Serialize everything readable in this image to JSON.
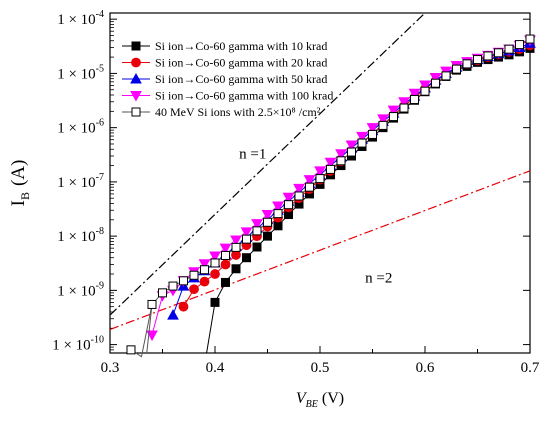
{
  "chart_data": {
    "type": "scatter",
    "title": "",
    "xlabel": "V",
    "xlabel_sub": "BE",
    "xlabel_unit": "(V)",
    "ylabel": "I",
    "ylabel_sub": "B",
    "ylabel_unit": "(A)",
    "xlim": [
      0.3,
      0.7
    ],
    "ylim": [
      7e-11,
      0.00013
    ],
    "yscale": "log",
    "grid": false,
    "legend_position": "top-left",
    "x_ticks": [
      {
        "value": 0.3,
        "label": "0.3"
      },
      {
        "value": 0.4,
        "label": "0.4"
      },
      {
        "value": 0.5,
        "label": "0.5"
      },
      {
        "value": 0.6,
        "label": "0.6"
      },
      {
        "value": 0.7,
        "label": "0.7"
      }
    ],
    "y_ticks": [
      {
        "value": 1e-10,
        "mantissa": "1 × 10",
        "exponent": "-10"
      },
      {
        "value": 1e-09,
        "mantissa": "1 × 10",
        "exponent": "-9"
      },
      {
        "value": 1e-08,
        "mantissa": "1 × 10",
        "exponent": "-8"
      },
      {
        "value": 1e-07,
        "mantissa": "1 × 10",
        "exponent": "-7"
      },
      {
        "value": 1e-06,
        "mantissa": "1 × 10",
        "exponent": "-6"
      },
      {
        "value": 1e-05,
        "mantissa": "1 × 10",
        "exponent": "-5"
      },
      {
        "value": 0.0001,
        "mantissa": "1 × 10",
        "exponent": "-4"
      }
    ],
    "series": [
      {
        "name": "Si ion→Co-60 gamma with 10 krad",
        "marker": "square",
        "fill": "#000000",
        "stroke": "#000000",
        "x": [
          0.4,
          0.41,
          0.42,
          0.43,
          0.44,
          0.45,
          0.46,
          0.47,
          0.48,
          0.49,
          0.5,
          0.51,
          0.52,
          0.53,
          0.54,
          0.55,
          0.56,
          0.57,
          0.58,
          0.59,
          0.6,
          0.61,
          0.62,
          0.63,
          0.64,
          0.65,
          0.66,
          0.67,
          0.68,
          0.69,
          0.7
        ],
        "y": [
          6e-10,
          1.4e-09,
          2.5e-09,
          4e-09,
          6.3e-09,
          1e-08,
          1.55e-08,
          2.5e-08,
          3.9e-08,
          6e-08,
          9e-08,
          1.35e-07,
          2e-07,
          3e-07,
          4.5e-07,
          6.7e-07,
          1e-06,
          1.5e-06,
          2.2e-06,
          3.2e-06,
          4.6e-06,
          6.4e-06,
          8.8e-06,
          1.15e-05,
          1.35e-05,
          1.6e-05,
          1.8e-05,
          2e-05,
          2.2e-05,
          2.5e-05,
          2.9e-05
        ]
      },
      {
        "name": "Si ion→Co-60 gamma with 20 krad",
        "marker": "circle",
        "fill": "#e8000b",
        "stroke": "#e8000b",
        "x": [
          0.37,
          0.38,
          0.39,
          0.4,
          0.41,
          0.42,
          0.43,
          0.44,
          0.45,
          0.46,
          0.47,
          0.48,
          0.49,
          0.5,
          0.51,
          0.52,
          0.53,
          0.54,
          0.55,
          0.56,
          0.57,
          0.58,
          0.59,
          0.6,
          0.61,
          0.62,
          0.63,
          0.64,
          0.65,
          0.66,
          0.67,
          0.68,
          0.69,
          0.7
        ],
        "y": [
          5e-10,
          1.05e-09,
          1.45e-09,
          2e-09,
          3e-09,
          4.5e-09,
          6.8e-09,
          1e-08,
          1.5e-08,
          2.2e-08,
          3.4e-08,
          5e-08,
          7.4e-08,
          1.1e-07,
          1.6e-07,
          2.4e-07,
          3.6e-07,
          5.3e-07,
          7.8e-07,
          1.15e-06,
          1.7e-06,
          2.5e-06,
          3.6e-06,
          5.2e-06,
          7.2e-06,
          9.6e-06,
          1.25e-05,
          1.5e-05,
          1.75e-05,
          2e-05,
          2.25e-05,
          2.5e-05,
          2.8e-05,
          3.3e-05
        ]
      },
      {
        "name": "Si ion→Co-60 gamma with 50 krad",
        "marker": "triangle-up",
        "fill": "#0000e8",
        "stroke": "#0000e8",
        "x": [
          0.36,
          0.37,
          0.38,
          0.39,
          0.4,
          0.41,
          0.42,
          0.43,
          0.44,
          0.45,
          0.46,
          0.47,
          0.48,
          0.49,
          0.5,
          0.51,
          0.52,
          0.53,
          0.54,
          0.55,
          0.56,
          0.57,
          0.58,
          0.59,
          0.6,
          0.61,
          0.62,
          0.63,
          0.64,
          0.65,
          0.66,
          0.67,
          0.68,
          0.69,
          0.7
        ],
        "y": [
          3.5e-10,
          1.2e-09,
          1.7e-09,
          2.3e-09,
          3.2e-09,
          4.6e-09,
          6.5e-09,
          9.5e-09,
          1.4e-08,
          2e-08,
          3e-08,
          4.4e-08,
          6.4e-08,
          9.4e-08,
          1.35e-07,
          2e-07,
          2.9e-07,
          4.2e-07,
          6.1e-07,
          8.8e-07,
          1.3e-06,
          1.85e-06,
          2.7e-06,
          3.8e-06,
          5.4e-06,
          7.5e-06,
          1e-05,
          1.3e-05,
          1.55e-05,
          1.8e-05,
          2.05e-05,
          2.3e-05,
          2.6e-05,
          3e-05,
          3.6e-05
        ]
      },
      {
        "name": "Si ion→Co-60 gamma with 100 krad",
        "marker": "triangle-down",
        "fill": "#ff00ff",
        "stroke": "#ff00ff",
        "x": [
          0.34,
          0.35,
          0.36,
          0.37,
          0.38,
          0.39,
          0.4,
          0.41,
          0.42,
          0.43,
          0.44,
          0.45,
          0.46,
          0.47,
          0.48,
          0.49,
          0.5,
          0.51,
          0.52,
          0.53,
          0.54,
          0.55,
          0.56,
          0.57,
          0.58,
          0.59,
          0.6,
          0.61,
          0.62,
          0.63,
          0.64,
          0.65,
          0.66,
          0.67,
          0.68,
          0.69,
          0.7
        ],
        "y": [
          1.5e-10,
          8e-10,
          1e-09,
          1.5e-09,
          2.2e-09,
          3.1e-09,
          4.3e-09,
          6e-09,
          8.5e-09,
          1.2e-08,
          1.7e-08,
          2.5e-08,
          3.6e-08,
          5.2e-08,
          7.6e-08,
          1.1e-07,
          1.6e-07,
          2.3e-07,
          3.3e-07,
          4.8e-07,
          6.9e-07,
          1e-06,
          1.45e-06,
          2.1e-06,
          3e-06,
          4.3e-06,
          6.1e-06,
          8.4e-06,
          1.1e-05,
          1.4e-05,
          1.65e-05,
          1.9e-05,
          2.15e-05,
          2.45e-05,
          2.8e-05,
          3.3e-05,
          4.1e-05
        ]
      },
      {
        "name": "40 MeV Si ions with 2.5×10⁸ /cm²",
        "marker": "square-open",
        "fill": "#ffffff",
        "stroke": "#000000",
        "x": [
          0.32,
          0.33,
          0.34,
          0.35,
          0.36,
          0.37,
          0.38,
          0.39,
          0.4,
          0.41,
          0.42,
          0.43,
          0.44,
          0.45,
          0.46,
          0.47,
          0.48,
          0.49,
          0.5,
          0.51,
          0.52,
          0.53,
          0.54,
          0.55,
          0.56,
          0.57,
          0.58,
          0.59,
          0.6,
          0.61,
          0.62,
          0.63,
          0.64,
          0.65,
          0.66,
          0.67,
          0.68,
          0.69,
          0.7
        ],
        "y": [
          8e-11,
          6e-11,
          5.5e-10,
          9e-10,
          1.2e-09,
          1.5e-09,
          1.9e-09,
          2.4e-09,
          3.2e-09,
          4.4e-09,
          6.2e-09,
          8.8e-09,
          1.25e-08,
          1.8e-08,
          2.6e-08,
          3.8e-08,
          5.5e-08,
          8e-08,
          1.15e-07,
          1.7e-07,
          2.45e-07,
          3.55e-07,
          5.2e-07,
          7.5e-07,
          1.1e-06,
          1.6e-06,
          2.3e-06,
          3.3e-06,
          4.7e-06,
          6.6e-06,
          9e-06,
          1.2e-05,
          1.5e-05,
          1.8e-05,
          2.1e-05,
          2.4e-05,
          2.8e-05,
          3.4e-05,
          4.3e-05
        ]
      }
    ],
    "reference_lines": [
      {
        "label": "n =1",
        "color": "#000000",
        "from": [
          0.3,
          3.5e-10
        ],
        "to": [
          0.6,
          0.00013
        ]
      },
      {
        "label": "n =2",
        "color": "#e8000b",
        "from": [
          0.3,
          1.9e-10
        ],
        "to": [
          0.7,
          1.6e-07
        ]
      }
    ],
    "annotations": [
      {
        "text": "n =1",
        "x": 0.423,
        "y": 2.7e-07
      },
      {
        "text": "n =2",
        "x": 0.543,
        "y": 1.4e-09
      }
    ]
  }
}
